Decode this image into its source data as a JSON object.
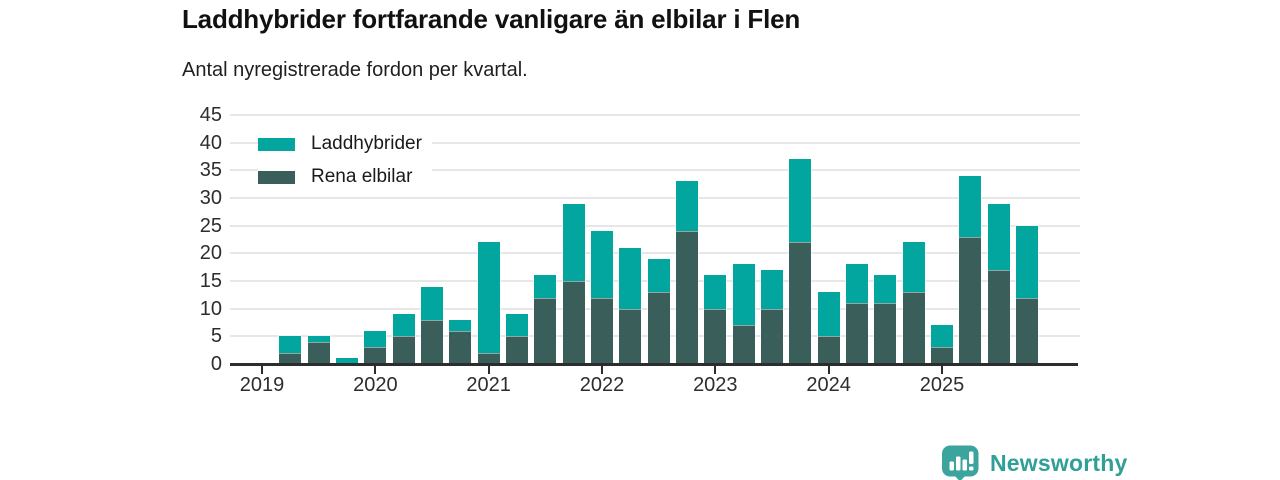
{
  "title": "Laddhybrider fortfarande vanligare än elbilar i Flen",
  "subtitle": "Antal nyregistrerade fordon per kvartal.",
  "colors": {
    "laddhybrider": "#03a69f",
    "rena_elbilar": "#3a5f5a",
    "gridline": "#e7e7e7",
    "axis": "#2d2d2d",
    "logo_teal": "#3ba59d",
    "logo_text": "#2f9f97"
  },
  "legend": [
    {
      "label": "Laddhybrider",
      "color": "#03a69f"
    },
    {
      "label": "Rena elbilar",
      "color": "#3a5f5a"
    }
  ],
  "chart_data": {
    "type": "bar",
    "stacked": true,
    "categories": [
      "2019Q1",
      "2019Q2",
      "2019Q3",
      "2019Q4",
      "2020Q1",
      "2020Q2",
      "2020Q3",
      "2020Q4",
      "2021Q1",
      "2021Q2",
      "2021Q3",
      "2021Q4",
      "2022Q1",
      "2022Q2",
      "2022Q3",
      "2022Q4",
      "2023Q1",
      "2023Q2",
      "2023Q3",
      "2023Q4",
      "2024Q1",
      "2024Q2",
      "2024Q3",
      "2024Q4",
      "2025Q1",
      "2025Q2",
      "2025Q3",
      "2025Q4"
    ],
    "series": [
      {
        "name": "Laddhybrider",
        "color": "#03a69f",
        "values": [
          0,
          3,
          1,
          1,
          3,
          4,
          6,
          2,
          20,
          4,
          4,
          14,
          12,
          11,
          6,
          9,
          6,
          11,
          7,
          15,
          8,
          7,
          5,
          9,
          4,
          11,
          12,
          13
        ]
      },
      {
        "name": "Rena elbilar",
        "color": "#3a5f5a",
        "values": [
          0,
          2,
          4,
          0,
          3,
          5,
          8,
          6,
          2,
          5,
          12,
          15,
          12,
          10,
          13,
          24,
          10,
          7,
          10,
          22,
          5,
          11,
          11,
          13,
          3,
          23,
          17,
          12
        ]
      }
    ],
    "totals": [
      0,
      5,
      5,
      1,
      6,
      9,
      14,
      8,
      22,
      9,
      16,
      29,
      24,
      21,
      19,
      33,
      16,
      18,
      17,
      37,
      13,
      18,
      16,
      22,
      7,
      34,
      29,
      25
    ],
    "title": "Laddhybrider fortfarande vanligare än elbilar i Flen",
    "xlabel": "",
    "ylabel": "",
    "ylim": [
      0,
      45
    ],
    "ytick_step": 5,
    "yticks": [
      0,
      5,
      10,
      15,
      20,
      25,
      30,
      35,
      40,
      45
    ],
    "xtick_labels": [
      "2019",
      "2020",
      "2021",
      "2022",
      "2023",
      "2024",
      "2025"
    ],
    "grid": "horizontal",
    "legend_position": "top-left-inside"
  },
  "footer": {
    "logo_text": "Newsworthy"
  }
}
